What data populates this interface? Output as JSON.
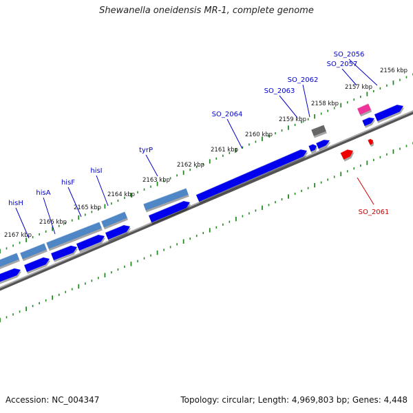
{
  "title": "Shewanella oneidensis MR-1, complete genome",
  "footer": {
    "accession": "Accession: NC_004347",
    "summary": "Topology: circular; Length: 4,969,803 bp; Genes: 4,448"
  },
  "colors": {
    "forward_gene": "#0000ee",
    "reverse_gene": "#4f86c6",
    "highlight_pink": "#ee3399",
    "highlight_gray": "#666666",
    "highlight_red": "#ee0000",
    "backbone": "#999999",
    "tick": "#228b22",
    "gene_label": "#0000cc",
    "red_label": "#cc0000"
  },
  "scale_labels": [
    {
      "kbp": 2156,
      "text": "2156 kbp"
    },
    {
      "kbp": 2157,
      "text": "2157 kbp"
    },
    {
      "kbp": 2158,
      "text": "2158 kbp"
    },
    {
      "kbp": 2159,
      "text": "2159 kbp"
    },
    {
      "kbp": 2160,
      "text": "2160 kbp"
    },
    {
      "kbp": 2161,
      "text": "2161 kbp"
    },
    {
      "kbp": 2162,
      "text": "2162 kbp"
    },
    {
      "kbp": 2163,
      "text": "2163 kbp"
    },
    {
      "kbp": 2164,
      "text": "2164 kbp"
    },
    {
      "kbp": 2165,
      "text": "2165 kbp"
    },
    {
      "kbp": 2166,
      "text": "2166 kbp"
    },
    {
      "kbp": 2167,
      "text": "2167 kbp"
    }
  ],
  "gene_labels": [
    {
      "text": "SO_2056",
      "color": "gene_label"
    },
    {
      "text": "SO_2057",
      "color": "gene_label"
    },
    {
      "text": "SO_2062",
      "color": "gene_label"
    },
    {
      "text": "SO_2063",
      "color": "gene_label"
    },
    {
      "text": "SO_2064",
      "color": "gene_label"
    },
    {
      "text": "tyrP",
      "color": "gene_label"
    },
    {
      "text": "hisI",
      "color": "gene_label"
    },
    {
      "text": "hisF",
      "color": "gene_label"
    },
    {
      "text": "hisA",
      "color": "gene_label"
    },
    {
      "text": "hisH",
      "color": "gene_label"
    },
    {
      "text": "SO_2061",
      "color": "red_label"
    }
  ]
}
